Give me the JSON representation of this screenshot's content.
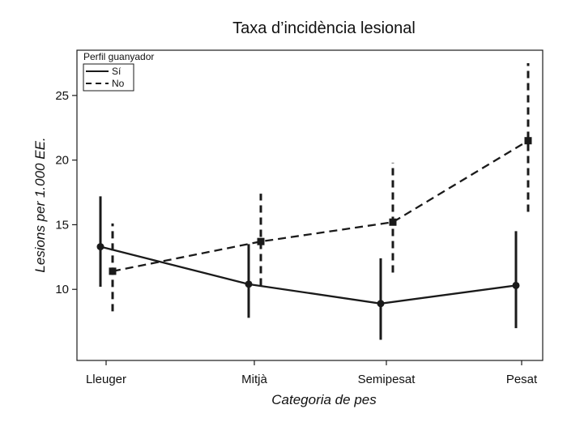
{
  "chart_data": {
    "type": "line",
    "title": "Taxa d’incidència lesional",
    "xlabel": "Categoria de pes",
    "ylabel": "Lesions per 1.000 EE.",
    "categories": [
      "Lleuger",
      "Mitjà",
      "Semipesat",
      "Pesat"
    ],
    "ylim": [
      4.5,
      28.5
    ],
    "yticks": [
      10,
      15,
      20,
      25
    ],
    "grid": false,
    "legend": {
      "title": "Perfil guanyador",
      "placement": "top-left"
    },
    "series": [
      {
        "name": "Sí",
        "line_style": "solid",
        "marker": "circle",
        "values": [
          13.3,
          10.4,
          8.9,
          10.3
        ],
        "error_low": [
          10.2,
          7.8,
          6.1,
          7.0
        ],
        "error_high": [
          17.2,
          13.5,
          12.4,
          14.5
        ]
      },
      {
        "name": "No",
        "line_style": "dashed",
        "marker": "square",
        "values": [
          11.4,
          13.7,
          15.2,
          21.5
        ],
        "error_low": [
          8.3,
          10.3,
          11.3,
          16.0
        ],
        "error_high": [
          15.1,
          17.4,
          19.8,
          27.5
        ]
      }
    ]
  },
  "colors": {
    "ink": "#1a1a1a",
    "background": "#ffffff"
  }
}
